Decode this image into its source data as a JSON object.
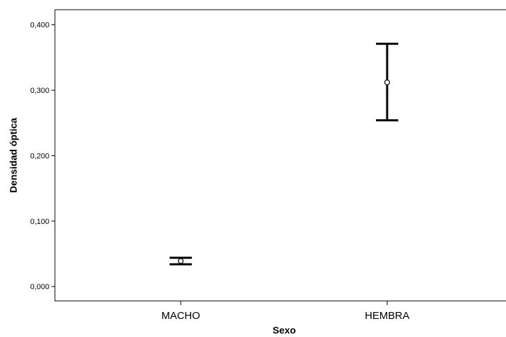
{
  "chart_data": {
    "type": "scatter",
    "subtype": "error-bar",
    "title": "",
    "xlabel": "Sexo",
    "ylabel": "Densidad óptica",
    "categories": [
      "MACHO",
      "HEMBRA"
    ],
    "series": [
      {
        "values": [
          0.039,
          0.312
        ],
        "lower": [
          0.034,
          0.254
        ],
        "upper": [
          0.044,
          0.371
        ]
      }
    ],
    "yticks": [
      "0,000",
      "0,100",
      "0,200",
      "0,300",
      "0,400"
    ],
    "ytick_values": [
      0,
      0.1,
      0.2,
      0.3,
      0.4
    ],
    "ylim": [
      -0.022,
      0.423
    ],
    "grid": false,
    "legend": "none"
  }
}
